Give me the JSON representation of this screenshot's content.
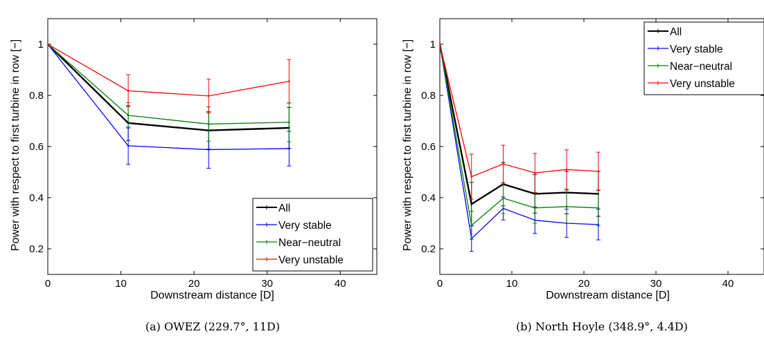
{
  "chart_data": [
    {
      "type": "line",
      "xlabel": "Downstream distance [D]",
      "ylabel": "Power with respect to first turbine in row [−]",
      "xlim": [
        0,
        45
      ],
      "ylim": [
        0.1,
        1.1
      ],
      "xticks": [
        "0",
        "10",
        "20",
        "30",
        "40"
      ],
      "yticks": [
        "0.2",
        "0.4",
        "0.6",
        "0.8",
        "1"
      ],
      "grid": false,
      "legend_position": "bottom-right",
      "caption": "(a) OWEZ (229.7°, 11D)",
      "series": [
        {
          "name": "All",
          "color": "#000000",
          "x": [
            0,
            11,
            22,
            33
          ],
          "y": [
            1.0,
            0.692,
            0.663,
            0.673
          ],
          "err": [
            0,
            0.068,
            0.073,
            0.08
          ]
        },
        {
          "name": "Very stable",
          "color": "#0000ff",
          "x": [
            0,
            11,
            22,
            33
          ],
          "y": [
            1.0,
            0.603,
            0.588,
            0.592
          ],
          "err": [
            0,
            0.073,
            0.073,
            0.068
          ]
        },
        {
          "name": "Near−neutral",
          "color": "#008000",
          "x": [
            0,
            11,
            22,
            33
          ],
          "y": [
            1.0,
            0.722,
            0.688,
            0.695
          ],
          "err": [
            0,
            0.05,
            0.067,
            0.076
          ]
        },
        {
          "name": "Very unstable",
          "color": "#ff0000",
          "x": [
            0,
            11,
            22,
            33
          ],
          "y": [
            1.0,
            0.818,
            0.798,
            0.855
          ],
          "err": [
            0,
            0.063,
            0.066,
            0.085
          ]
        }
      ]
    },
    {
      "type": "line",
      "xlabel": "Downstream distance [D]",
      "ylabel": "Power with respect to first turbine in row [−]",
      "xlim": [
        0,
        45
      ],
      "ylim": [
        0.1,
        1.1
      ],
      "xticks": [
        "0",
        "10",
        "20",
        "30",
        "40"
      ],
      "yticks": [
        "0.2",
        "0.4",
        "0.6",
        "0.8",
        "1"
      ],
      "grid": false,
      "legend_position": "top-right",
      "caption": "(b) North Hoyle (348.9°, 4.4D)",
      "series": [
        {
          "name": "All",
          "color": "#000000",
          "x": [
            0,
            4.4,
            8.8,
            13.2,
            17.6,
            22
          ],
          "y": [
            1.0,
            0.375,
            0.453,
            0.415,
            0.42,
            0.415
          ],
          "err": [
            0,
            0.085,
            0.085,
            0.075,
            0.083,
            0.088
          ]
        },
        {
          "name": "Very stable",
          "color": "#0000ff",
          "x": [
            0,
            4.4,
            8.8,
            13.2,
            17.6,
            22
          ],
          "y": [
            1.0,
            0.24,
            0.358,
            0.312,
            0.3,
            0.295
          ],
          "err": [
            0,
            0.05,
            0.045,
            0.052,
            0.055,
            0.06
          ]
        },
        {
          "name": "Near−neutral",
          "color": "#008000",
          "x": [
            0,
            4.4,
            8.8,
            13.2,
            17.6,
            22
          ],
          "y": [
            1.0,
            0.292,
            0.398,
            0.36,
            0.365,
            0.36
          ],
          "err": [
            0,
            0.055,
            0.06,
            0.06,
            0.065,
            0.07
          ]
        },
        {
          "name": "Very unstable",
          "color": "#ff0000",
          "x": [
            0,
            4.4,
            8.8,
            13.2,
            17.6,
            22
          ],
          "y": [
            1.0,
            0.482,
            0.532,
            0.497,
            0.51,
            0.503
          ],
          "err": [
            0,
            0.088,
            0.073,
            0.076,
            0.077,
            0.075
          ]
        }
      ]
    }
  ]
}
